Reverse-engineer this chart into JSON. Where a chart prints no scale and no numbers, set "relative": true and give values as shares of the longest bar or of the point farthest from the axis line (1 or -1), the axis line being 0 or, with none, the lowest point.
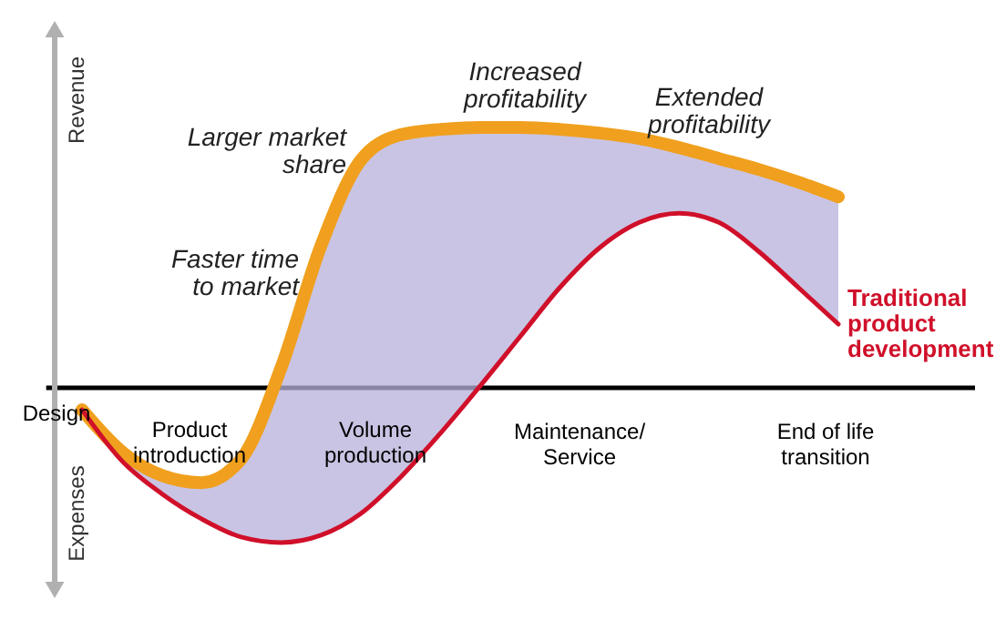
{
  "chart_data": {
    "type": "line",
    "relative": true,
    "legend": false,
    "marker": "none",
    "line_style": "solid",
    "categories": [
      null,
      null,
      null,
      null,
      null,
      null,
      null,
      null,
      null,
      null,
      null,
      null,
      null,
      null,
      null,
      null,
      null,
      null,
      null,
      null
    ],
    "series": [
      {
        "color": "#f0a01e",
        "values": [
          -0.084,
          -0.245,
          -0.336,
          -0.364,
          -0.273,
          0.077,
          0.545,
          0.874,
          0.972,
          0.993,
          1,
          1,
          0.993,
          0.979,
          0.958,
          0.923,
          0.881,
          0.839,
          0.79,
          0.734
        ],
        "upper": [
          -0.084,
          -0.245,
          -0.336,
          -0.364,
          -0.273,
          0.077,
          0.545,
          0.874,
          0.972,
          0.993,
          1,
          1,
          0.993,
          0.979,
          0.958,
          0.923,
          0.881,
          0.839,
          0.79,
          0.734
        ],
        "lower": [
          -0.084,
          -0.28,
          -0.406,
          -0.503,
          -0.573,
          -0.594,
          -0.566,
          -0.483,
          -0.343,
          -0.175,
          0.007,
          0.196,
          0.385,
          0.538,
          0.636,
          0.671,
          0.636,
          0.524,
          0.385,
          0.245
        ]
      },
      {
        "name": "Traditional product development",
        "color": "#d0102a",
        "values": [
          -0.084,
          -0.28,
          -0.406,
          -0.503,
          -0.573,
          -0.594,
          -0.566,
          -0.483,
          -0.343,
          -0.175,
          0.007,
          0.196,
          0.385,
          0.538,
          0.636,
          0.671,
          0.636,
          0.524,
          0.385,
          0.245
        ]
      }
    ],
    "annotations": [
      "Revenue",
      "Expenses",
      "Faster time\nto market",
      "Larger market\nshare",
      "Increased\nprofitability",
      "Extended\nprofitability",
      "Design",
      "Product\nintroduction",
      "Volume\nproduction",
      "Maintenance/\nService",
      "End of life\ntransition"
    ]
  }
}
